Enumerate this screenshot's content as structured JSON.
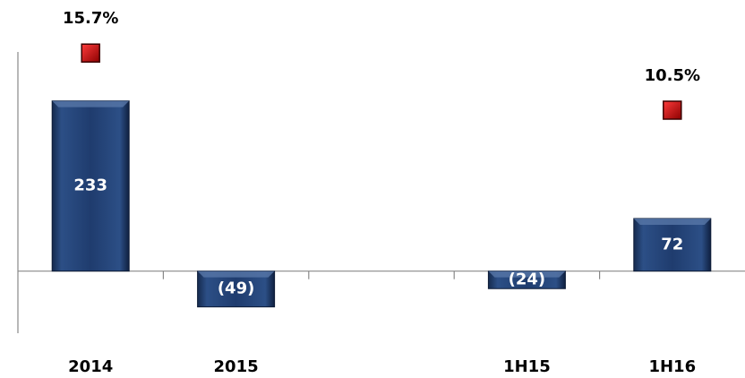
{
  "chart_data": {
    "type": "bar",
    "categories": [
      "2014",
      "2015",
      null,
      "1H15",
      "1H16"
    ],
    "series": [
      {
        "color": "#1f3864",
        "values": [
          233,
          -49,
          null,
          -24,
          72
        ],
        "value_labels": [
          "233",
          "(49)",
          null,
          "(24)",
          "72"
        ]
      },
      {
        "type": "scatter",
        "axis": "y2",
        "color": "#c00000",
        "values": [
          15.7,
          null,
          null,
          null,
          10.5
        ],
        "value_labels": [
          "15.7%",
          null,
          null,
          null,
          "10.5%"
        ]
      }
    ],
    "ylim": [
      -85,
      300
    ],
    "y2lim": [
      -9.8,
      15.8
    ]
  }
}
